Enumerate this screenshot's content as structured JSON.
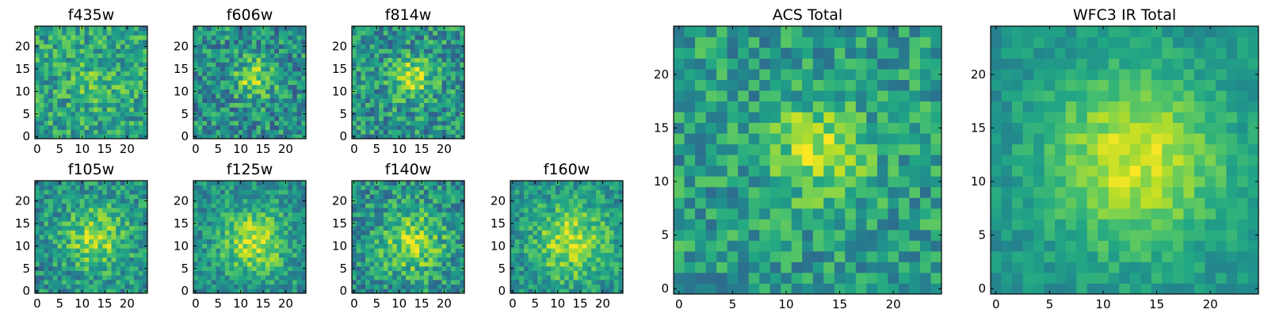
{
  "chart_data": [
    {
      "id": "f435w",
      "type": "heatmap",
      "title": "f435w",
      "grid_size": 25,
      "xticks": [
        0,
        5,
        10,
        15,
        20
      ],
      "yticks": [
        0,
        5,
        10,
        15,
        20
      ],
      "colormap": "viridis",
      "peak": [
        13,
        12
      ],
      "peak_sigma": 4,
      "peak_amp": 0.12,
      "noise": 0.22,
      "base": 0.58,
      "seed": 11
    },
    {
      "id": "f606w",
      "type": "heatmap",
      "title": "f606w",
      "grid_size": 25,
      "xticks": [
        0,
        5,
        10,
        15,
        20
      ],
      "yticks": [
        0,
        5,
        10,
        15,
        20
      ],
      "colormap": "viridis",
      "peak": [
        13,
        13
      ],
      "peak_sigma": 3,
      "peak_amp": 0.35,
      "noise": 0.24,
      "base": 0.5,
      "seed": 23
    },
    {
      "id": "f814w",
      "type": "heatmap",
      "title": "f814w",
      "grid_size": 25,
      "xticks": [
        0,
        5,
        10,
        15,
        20
      ],
      "yticks": [
        0,
        5,
        10,
        15,
        20
      ],
      "colormap": "viridis",
      "peak": [
        13,
        13
      ],
      "peak_sigma": 3,
      "peak_amp": 0.4,
      "noise": 0.24,
      "base": 0.52,
      "seed": 37
    },
    {
      "id": "f105w",
      "type": "heatmap",
      "title": "f105w",
      "grid_size": 25,
      "xticks": [
        0,
        5,
        10,
        15,
        20
      ],
      "yticks": [
        0,
        5,
        10,
        15,
        20
      ],
      "colormap": "viridis",
      "peak": [
        13,
        12
      ],
      "peak_sigma": 5,
      "peak_amp": 0.35,
      "noise": 0.2,
      "base": 0.5,
      "seed": 41
    },
    {
      "id": "f125w",
      "type": "heatmap",
      "title": "f125w",
      "grid_size": 25,
      "xticks": [
        0,
        5,
        10,
        15,
        20
      ],
      "yticks": [
        0,
        5,
        10,
        15,
        20
      ],
      "colormap": "viridis",
      "peak": [
        13,
        11
      ],
      "peak_sigma": 5,
      "peak_amp": 0.4,
      "noise": 0.18,
      "base": 0.5,
      "seed": 53
    },
    {
      "id": "f140w",
      "type": "heatmap",
      "title": "f140w",
      "grid_size": 25,
      "xticks": [
        0,
        5,
        10,
        15,
        20
      ],
      "yticks": [
        0,
        5,
        10,
        15,
        20
      ],
      "colormap": "viridis",
      "peak": [
        13,
        11
      ],
      "peak_sigma": 5,
      "peak_amp": 0.35,
      "noise": 0.22,
      "base": 0.5,
      "seed": 67
    },
    {
      "id": "f160w",
      "type": "heatmap",
      "title": "f160w",
      "grid_size": 25,
      "xticks": [
        0,
        5,
        10,
        15,
        20
      ],
      "yticks": [
        0,
        5,
        10,
        15,
        20
      ],
      "colormap": "viridis",
      "peak": [
        13,
        11
      ],
      "peak_sigma": 6,
      "peak_amp": 0.38,
      "noise": 0.18,
      "base": 0.5,
      "seed": 79
    },
    {
      "id": "acs-total",
      "type": "heatmap",
      "title": "ACS Total",
      "grid_size": 25,
      "xticks": [
        0,
        5,
        10,
        15,
        20
      ],
      "yticks": [
        0,
        5,
        10,
        15,
        20
      ],
      "colormap": "viridis",
      "peak": [
        13,
        13
      ],
      "peak_sigma": 3,
      "peak_amp": 0.35,
      "noise": 0.2,
      "base": 0.55,
      "seed": 97
    },
    {
      "id": "wfc3-ir-total",
      "type": "heatmap",
      "title": "WFC3 IR Total",
      "grid_size": 25,
      "xticks": [
        0,
        5,
        10,
        15,
        20
      ],
      "yticks": [
        0,
        5,
        10,
        15,
        20
      ],
      "colormap": "viridis",
      "peak": [
        13,
        12
      ],
      "peak_sigma": 6,
      "peak_amp": 0.42,
      "noise": 0.1,
      "base": 0.5,
      "seed": 113
    }
  ]
}
